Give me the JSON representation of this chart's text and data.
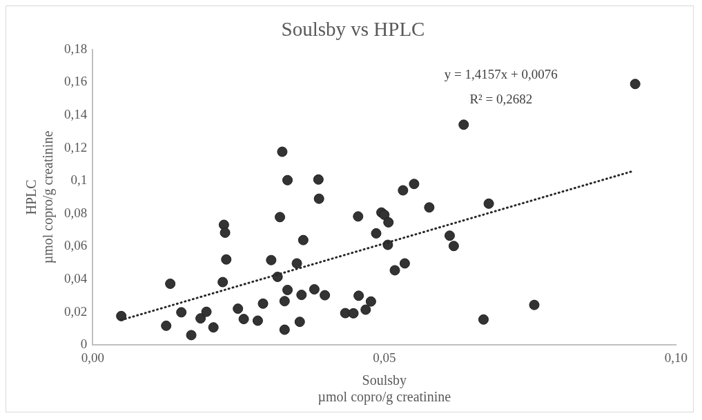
{
  "chart_data": {
    "type": "scatter",
    "title": "Soulsby vs HPLC",
    "xlabel": "Soulsby\nµmol copro/g creatinine",
    "ylabel": "HPLC\nµmol copro/g creatinine",
    "annotations": [
      "y = 1,4157x + 0,0076",
      "R² = 0,2682"
    ],
    "xlim": [
      0,
      0.1
    ],
    "xticks": [
      {
        "value": 0,
        "label": "0,00"
      },
      {
        "value": 0.05,
        "label": "0,05"
      },
      {
        "value": 0.1,
        "label": "0,10"
      }
    ],
    "ylim": [
      0,
      0.18
    ],
    "yticks": [
      0,
      {
        "value": 0.02,
        "label": "0,02"
      },
      {
        "value": 0.04,
        "label": "0,04"
      },
      {
        "value": 0.06,
        "label": "0,06"
      },
      {
        "value": 0.08,
        "label": "0,08"
      },
      {
        "value": 0.1,
        "label": "0,1"
      },
      {
        "value": 0.12,
        "label": "0,12"
      },
      {
        "value": 0.14,
        "label": "0,14"
      },
      {
        "value": 0.16,
        "label": "0,16"
      },
      {
        "value": 0.18,
        "label": "0,18"
      }
    ],
    "grid": false,
    "legend": false,
    "marker": "circle",
    "series": [
      {
        "type": "scatter",
        "color": "#333333",
        "x": [
          0.0049,
          0.0126,
          0.0133,
          0.0152,
          0.0169,
          0.0185,
          0.0195,
          0.0207,
          0.0225,
          0.0227,
          0.0229,
          0.0223,
          0.0249,
          0.0259,
          0.0283,
          0.0292,
          0.0306,
          0.0321,
          0.0317,
          0.0325,
          0.0334,
          0.0334,
          0.0329,
          0.0329,
          0.0387,
          0.0388,
          0.0361,
          0.035,
          0.0358,
          0.0355,
          0.038,
          0.0398,
          0.0455,
          0.0433,
          0.0447,
          0.0456,
          0.0468,
          0.0477,
          0.0486,
          0.0495,
          0.05,
          0.0507,
          0.0506,
          0.0518,
          0.0535,
          0.0532,
          0.0551,
          0.0577,
          0.0612,
          0.0619,
          0.0636,
          0.067,
          0.0679,
          0.0757,
          0.093
        ],
        "values": [
          0.0176,
          0.0117,
          0.0373,
          0.0199,
          0.006,
          0.0162,
          0.0202,
          0.0107,
          0.0732,
          0.0684,
          0.0521,
          0.0383,
          0.0221,
          0.0158,
          0.0148,
          0.0252,
          0.0517,
          0.0779,
          0.0415,
          0.1177,
          0.1004,
          0.0335,
          0.0267,
          0.0093,
          0.1008,
          0.0891,
          0.0639,
          0.0497,
          0.0305,
          0.0141,
          0.0339,
          0.0303,
          0.0783,
          0.0194,
          0.0193,
          0.03,
          0.0215,
          0.0265,
          0.068,
          0.0807,
          0.0793,
          0.0747,
          0.061,
          0.0455,
          0.0497,
          0.0942,
          0.0981,
          0.0838,
          0.0666,
          0.0603,
          0.1342,
          0.0155,
          0.0861,
          0.0244,
          0.159
        ]
      },
      {
        "type": "line",
        "color": "#262626",
        "line_style": "dotted",
        "marker": "none",
        "x": [
          0.0049,
          0.0927
        ],
        "values": [
          0.0152,
          0.106
        ]
      }
    ]
  }
}
